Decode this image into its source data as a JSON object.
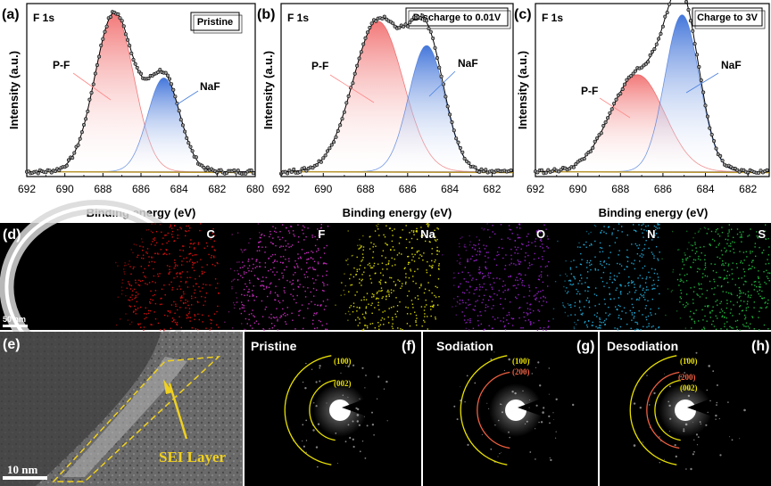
{
  "chart_data": [
    {
      "type": "line",
      "panel": "(a)",
      "title": "F 1s",
      "condition": "Pristine",
      "xlabel": "Binding energy (eV)",
      "ylabel": "Intensity (a.u.)",
      "xlim": [
        692,
        680
      ],
      "ylim": [
        0,
        1.07
      ],
      "xticks": [
        "692",
        "690",
        "688",
        "686",
        "684",
        "682",
        "680"
      ],
      "grid": false,
      "series": [
        {
          "name": "P-F",
          "center": 687.4,
          "height": 0.98,
          "fwhm": 2.4,
          "color": "#e84a4a"
        },
        {
          "name": "NaF",
          "center": 684.8,
          "height": 0.58,
          "fwhm": 2.0,
          "color": "#3a6fd8"
        }
      ],
      "baseline": 0.03
    },
    {
      "type": "line",
      "panel": "(b)",
      "title": "F 1s",
      "condition": "Discharge to 0.01V",
      "xlabel": "Binding energy (eV)",
      "ylabel": "Intensity (a.u.)",
      "xlim": [
        692,
        681
      ],
      "ylim": [
        0,
        1.07
      ],
      "xticks": [
        "692",
        "690",
        "688",
        "686",
        "684",
        "682"
      ],
      "grid": false,
      "series": [
        {
          "name": "P-F",
          "center": 687.4,
          "height": 0.93,
          "fwhm": 2.8,
          "color": "#e84a4a"
        },
        {
          "name": "NaF",
          "center": 685.1,
          "height": 0.78,
          "fwhm": 2.0,
          "color": "#3a6fd8"
        }
      ],
      "baseline": 0.03
    },
    {
      "type": "line",
      "panel": "(c)",
      "title": "F 1s",
      "condition": "Charge to 3V",
      "xlabel": "Binding energy (eV)",
      "ylabel": "Intensity (a.u.)",
      "xlim": [
        692,
        681
      ],
      "ylim": [
        0,
        1.07
      ],
      "xticks": [
        "692",
        "690",
        "688",
        "686",
        "684",
        "682"
      ],
      "grid": false,
      "series": [
        {
          "name": "P-F",
          "center": 687.2,
          "height": 0.6,
          "fwhm": 3.0,
          "color": "#e84a4a"
        },
        {
          "name": "NaF",
          "center": 685.1,
          "height": 0.97,
          "fwhm": 1.9,
          "color": "#3a6fd8"
        }
      ],
      "baseline": 0.03
    }
  ],
  "panel_labels": {
    "d": "(d)",
    "e": "(e)",
    "f": "(f)",
    "g": "(g)",
    "h": "(h)"
  },
  "eds_map": {
    "scale_bar": "50 nm",
    "elements": [
      {
        "symbol": "",
        "color": "#ffffff"
      },
      {
        "symbol": "C",
        "color": "#e01010"
      },
      {
        "symbol": "F",
        "color": "#d030c8"
      },
      {
        "symbol": "Na",
        "color": "#e6e600"
      },
      {
        "symbol": "O",
        "color": "#9a20d0"
      },
      {
        "symbol": "N",
        "color": "#20b0e0"
      },
      {
        "symbol": "S",
        "color": "#20c040"
      }
    ]
  },
  "tem": {
    "scale_bar": "10 nm",
    "annotation": "SEI Layer"
  },
  "saed": [
    {
      "title": "Pristine",
      "rings": [
        {
          "label": "(100)",
          "color": "#e8e000"
        },
        {
          "label": "(002)",
          "color": "#e8e000"
        }
      ]
    },
    {
      "title": "Sodiation",
      "rings": [
        {
          "label": "(100)",
          "color": "#e8e000"
        },
        {
          "label": "(200)",
          "color": "#f06040"
        }
      ]
    },
    {
      "title": "Desodiation",
      "rings": [
        {
          "label": "(100)",
          "color": "#e8e000"
        },
        {
          "label": "(200)",
          "color": "#f06040"
        },
        {
          "label": "(002)",
          "color": "#e8e000"
        }
      ]
    }
  ]
}
